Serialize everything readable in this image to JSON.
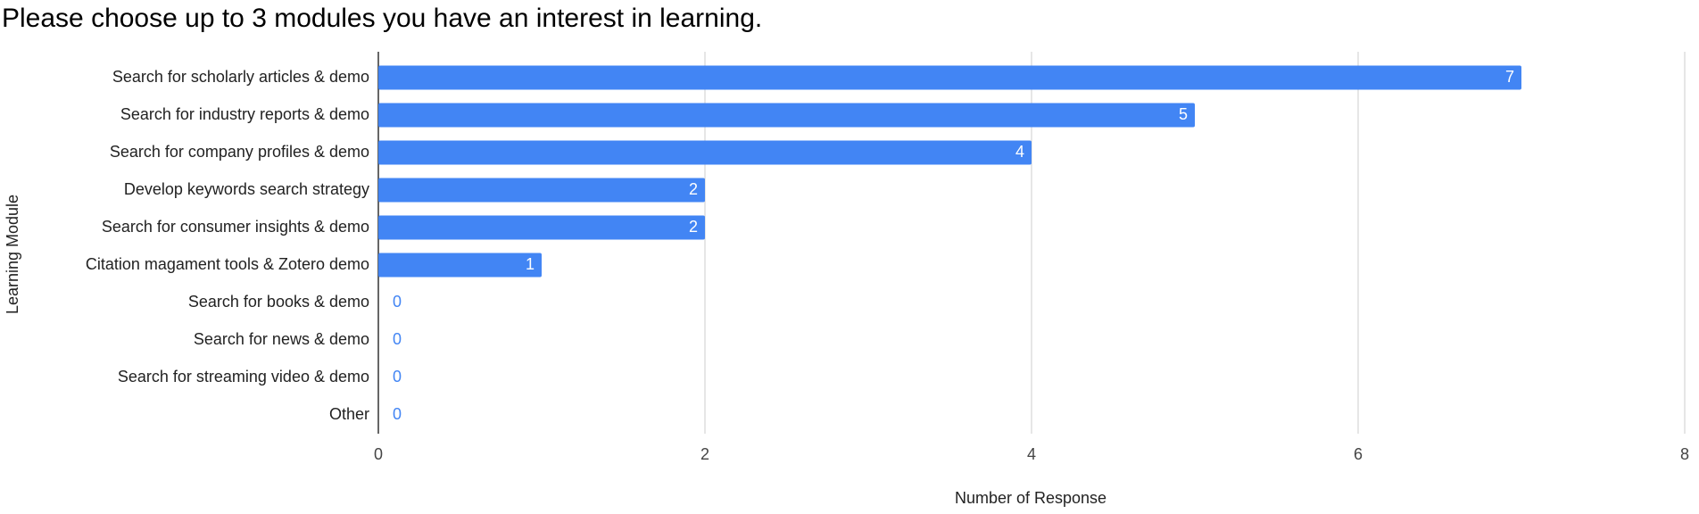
{
  "chart_data": {
    "type": "bar",
    "orientation": "horizontal",
    "title": "Please choose up to 3 modules you have an interest in learning.",
    "x_label": "Number of Response",
    "y_label": "Learning Module",
    "categories": [
      "Search for scholarly articles & demo",
      "Search for industry reports & demo",
      "Search for company profiles & demo",
      "Develop keywords search strategy",
      "Search for consumer insights & demo",
      "Citation magament tools & Zotero demo",
      "Search for books & demo",
      "Search for news & demo",
      "Search for streaming video & demo",
      "Other"
    ],
    "values": [
      7,
      5,
      4,
      2,
      2,
      1,
      0,
      0,
      0,
      0
    ],
    "color": "#4285f4",
    "xlim": [
      0,
      8
    ],
    "xticks": [
      0,
      2,
      4,
      6,
      8
    ],
    "grid": true
  }
}
